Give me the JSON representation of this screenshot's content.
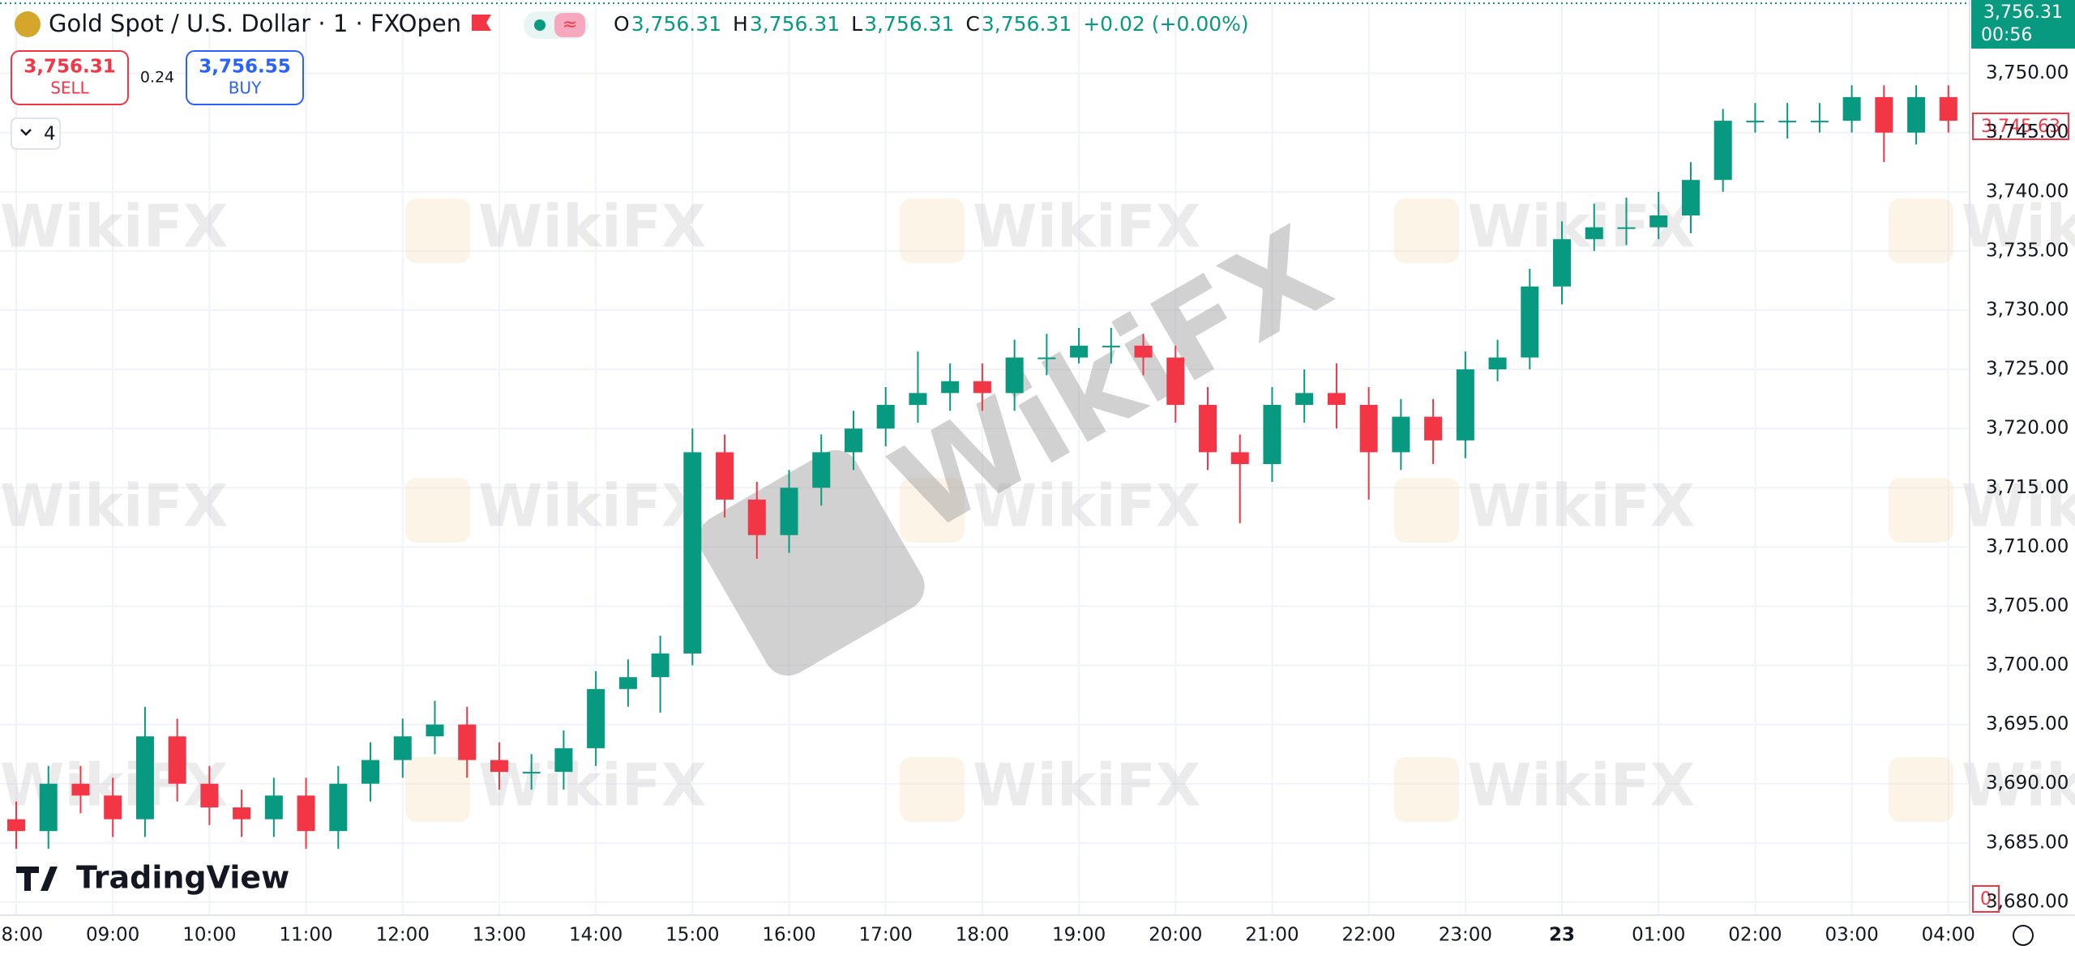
{
  "chart_data": {
    "type": "candlestick",
    "title": "Gold Spot / U.S. Dollar · 1 · FXOpen",
    "ohlc_legend": [
      {
        "label": "O",
        "value": "3,756.31"
      },
      {
        "label": "H",
        "value": "3,756.31"
      },
      {
        "label": "L",
        "value": "3,756.31"
      },
      {
        "label": "C",
        "value": "3,756.31"
      }
    ],
    "change": "+0.02 (+0.00%)",
    "trade_panel": {
      "sell_price": "3,756.31",
      "sell": "SELL",
      "spread": "0.24",
      "buy_price": "3,756.55",
      "buy": "BUY"
    },
    "indicators_count": "4",
    "price_tag": {
      "price": "3,756.31",
      "countdown": "00:56"
    },
    "price_line_label": "3,745.63",
    "volume_label": "0",
    "logo": "TradingView",
    "watermark": "WikiFX",
    "up_color": "#089981",
    "down_color": "#f23645",
    "x": [
      "08:00",
      "08:20",
      "08:40",
      "09:00",
      "09:20",
      "09:40",
      "10:00",
      "10:20",
      "10:40",
      "11:00",
      "11:20",
      "11:40",
      "12:00",
      "12:20",
      "12:40",
      "13:00",
      "13:20",
      "13:40",
      "14:00",
      "14:20",
      "14:40",
      "15:00",
      "15:20",
      "15:40",
      "16:00",
      "16:20",
      "16:40",
      "17:00",
      "17:20",
      "17:40",
      "18:00",
      "18:20",
      "18:40",
      "19:00",
      "19:20",
      "19:40",
      "20:00",
      "20:20",
      "20:40",
      "21:00",
      "21:20",
      "21:40",
      "22:00",
      "22:20",
      "22:40",
      "23:00",
      "23:20",
      "23:40",
      "00:00",
      "00:20",
      "00:40",
      "01:00",
      "01:20",
      "01:40",
      "02:00",
      "02:20",
      "02:40",
      "03:00",
      "03:20",
      "03:40",
      "04:00"
    ],
    "open": [
      3687,
      3686,
      3690,
      3689,
      3687,
      3694,
      3690,
      3688,
      3687,
      3689,
      3686,
      3690,
      3692,
      3694,
      3695,
      3692,
      3691,
      3691,
      3693,
      3698,
      3699,
      3701,
      3718,
      3714,
      3711,
      3715,
      3718,
      3720,
      3722,
      3723,
      3724,
      3723,
      3726,
      3726,
      3727,
      3727,
      3726,
      3722,
      3718,
      3717,
      3722,
      3723,
      3722,
      3718,
      3721,
      3719,
      3725,
      3726,
      3732,
      3736,
      3737,
      3737,
      3738,
      3741,
      3746,
      3746,
      3746,
      3746,
      3748,
      3745,
      3748
    ],
    "high": [
      3688.5,
      3691.5,
      3691.5,
      3690.5,
      3696.5,
      3695.5,
      3691.5,
      3689.5,
      3690.5,
      3690.5,
      3691.5,
      3693.5,
      3695.5,
      3697,
      3696.5,
      3693.5,
      3692.5,
      3694.5,
      3699.5,
      3700.5,
      3702.5,
      3720,
      3719.5,
      3715.5,
      3716.5,
      3719.5,
      3721.5,
      3723.5,
      3726.5,
      3725.5,
      3725.5,
      3727.5,
      3728,
      3728.5,
      3728.5,
      3728,
      3727,
      3723.5,
      3719.5,
      3723.5,
      3725,
      3725.5,
      3723.5,
      3722.5,
      3722.5,
      3726.5,
      3727.5,
      3733.5,
      3737.5,
      3739,
      3739.5,
      3740,
      3742.5,
      3747,
      3747.5,
      3747.5,
      3747.5,
      3749,
      3749,
      3749,
      3749
    ],
    "low": [
      3684.5,
      3684.5,
      3687.5,
      3685.5,
      3685.5,
      3688.5,
      3686.5,
      3685.5,
      3685.5,
      3684.5,
      3684.5,
      3688.5,
      3690.5,
      3692.5,
      3690.5,
      3689.5,
      3689.5,
      3689.5,
      3691.5,
      3696.5,
      3696,
      3700,
      3712.5,
      3709,
      3709.5,
      3713.5,
      3716.5,
      3718.5,
      3720.5,
      3721.5,
      3721.5,
      3721.5,
      3724.5,
      3725.5,
      3725.5,
      3724.5,
      3720.5,
      3716.5,
      3712,
      3715.5,
      3720.5,
      3720,
      3714,
      3716.5,
      3717,
      3717.5,
      3724,
      3725,
      3730.5,
      3735,
      3735.5,
      3736,
      3736.5,
      3740,
      3745,
      3744.5,
      3745,
      3745,
      3742.5,
      3744,
      3745
    ],
    "close": [
      3686,
      3690,
      3689,
      3687,
      3694,
      3690,
      3688,
      3687,
      3689,
      3686,
      3690,
      3692,
      3694,
      3695,
      3692,
      3691,
      3691,
      3693,
      3698,
      3699,
      3701,
      3718,
      3714,
      3711,
      3715,
      3718,
      3720,
      3722,
      3723,
      3724,
      3723,
      3726,
      3726,
      3727,
      3727,
      3726,
      3722,
      3718,
      3717,
      3722,
      3723,
      3722,
      3718,
      3721,
      3719,
      3725,
      3726,
      3732,
      3736,
      3737,
      3737,
      3738,
      3741,
      3746,
      3746,
      3746,
      3746,
      3748,
      3745,
      3748,
      3746
    ],
    "xticks": [
      "08:00",
      "09:00",
      "10:00",
      "11:00",
      "12:00",
      "13:00",
      "14:00",
      "15:00",
      "16:00",
      "17:00",
      "18:00",
      "19:00",
      "20:00",
      "21:00",
      "22:00",
      "23:00",
      {
        "value": "00:00",
        "label": "23"
      },
      "01:00",
      "02:00",
      "03:00",
      "04:00"
    ],
    "ylim": [
      3678.9,
      3756.2
    ],
    "yticks": [
      {
        "value": 3680,
        "label": "3,680.00"
      },
      {
        "value": 3685,
        "label": "3,685.00"
      },
      {
        "value": 3690,
        "label": "3,690.00"
      },
      {
        "value": 3695,
        "label": "3,695.00"
      },
      {
        "value": 3700,
        "label": "3,700.00"
      },
      {
        "value": 3705,
        "label": "3,705.00"
      },
      {
        "value": 3710,
        "label": "3,710.00"
      },
      {
        "value": 3715,
        "label": "3,715.00"
      },
      {
        "value": 3720,
        "label": "3,720.00"
      },
      {
        "value": 3725,
        "label": "3,725.00"
      },
      {
        "value": 3730,
        "label": "3,730.00"
      },
      {
        "value": 3735,
        "label": "3,735.00"
      },
      {
        "value": 3740,
        "label": "3,740.00"
      },
      {
        "value": 3745,
        "label": "3,745.00"
      },
      {
        "value": 3750,
        "label": "3,750.00"
      }
    ],
    "grid": true
  }
}
